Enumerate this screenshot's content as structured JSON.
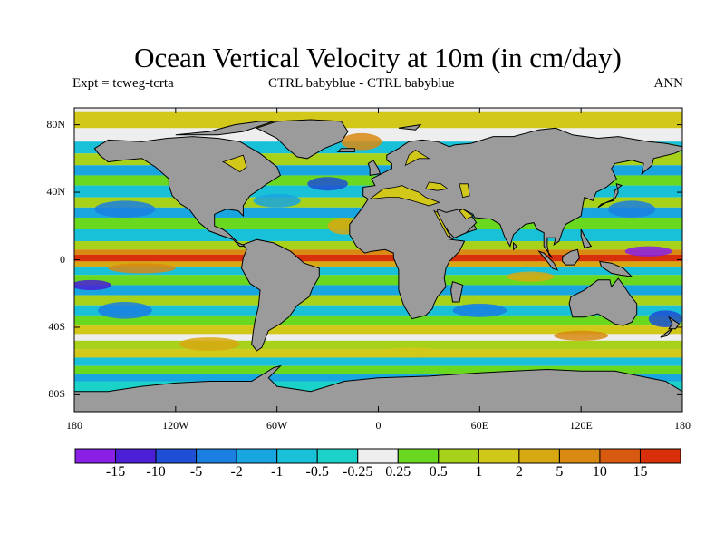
{
  "title": "Ocean Vertical Velocity at 10m (in cm/day)",
  "subtitle_left": "Expt = tcweg-tcrta",
  "subtitle_center": "CTRL babyblue - CTRL babyblue",
  "subtitle_right": "ANN",
  "map": {
    "projection": "cylindrical-equidistant",
    "lon_range": [
      -180,
      180
    ],
    "lat_range": [
      -90,
      90
    ],
    "land_color": "#9b9b9b",
    "ocean_background": "#eeeeee",
    "lat_ticks": [
      {
        "value": 80,
        "label": "80N"
      },
      {
        "value": 40,
        "label": "40N"
      },
      {
        "value": 0,
        "label": "0"
      },
      {
        "value": -40,
        "label": "40S"
      },
      {
        "value": -80,
        "label": "80S"
      }
    ],
    "lon_ticks": [
      {
        "value": -180,
        "label": "180"
      },
      {
        "value": -120,
        "label": "120W"
      },
      {
        "value": -60,
        "label": "60W"
      },
      {
        "value": 0,
        "label": "0"
      },
      {
        "value": 60,
        "label": "60E"
      },
      {
        "value": 120,
        "label": "120E"
      },
      {
        "value": 180,
        "label": "180"
      }
    ]
  },
  "colorbar": {
    "colors": [
      "#8a1fe6",
      "#4a1fd6",
      "#1f4fd6",
      "#1a7fe0",
      "#18a5e0",
      "#18c0d8",
      "#1ad2c8",
      "#eeeeee",
      "#6ad81f",
      "#a8d21a",
      "#d2c81a",
      "#d8a812",
      "#d88a12",
      "#d85a10",
      "#d8300a"
    ],
    "labels": [
      "-15",
      "-10",
      "-5",
      "-2",
      "-1",
      "-0.5",
      "-0.25",
      "0.25",
      "0.5",
      "1",
      "2",
      "5",
      "10",
      "15"
    ]
  }
}
